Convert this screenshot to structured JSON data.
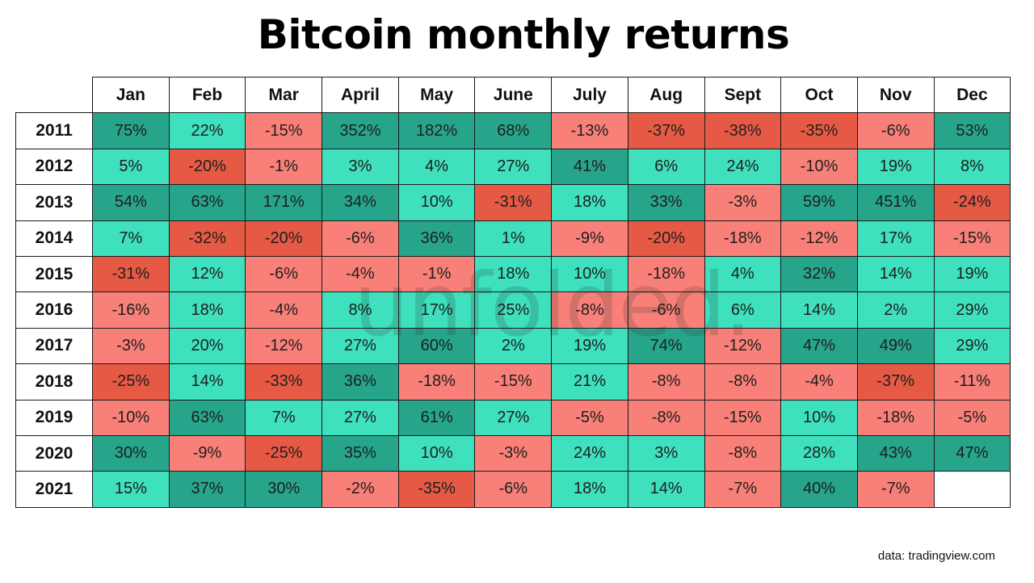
{
  "title": "Bitcoin monthly returns",
  "watermark": "unfolded.",
  "source": "data: tradingview.com",
  "colors": {
    "strong_positive": "#26a58b",
    "positive": "#3ee0bd",
    "negative": "#f88078",
    "strong_negative": "#e65a45",
    "empty": "#ffffff",
    "border": "#1a1a1a"
  },
  "chart_data": {
    "type": "heatmap",
    "title": "Bitcoin monthly returns",
    "columns": [
      "Jan",
      "Feb",
      "Mar",
      "April",
      "May",
      "June",
      "July",
      "Aug",
      "Sept",
      "Oct",
      "Nov",
      "Dec"
    ],
    "rows": [
      "2011",
      "2012",
      "2013",
      "2014",
      "2015",
      "2016",
      "2017",
      "2018",
      "2019",
      "2020",
      "2021"
    ],
    "unit": "%",
    "values": [
      [
        75,
        22,
        -15,
        352,
        182,
        68,
        -13,
        -37,
        -38,
        -35,
        -6,
        53
      ],
      [
        5,
        -20,
        -1,
        3,
        4,
        27,
        41,
        6,
        24,
        -10,
        19,
        8
      ],
      [
        54,
        63,
        171,
        34,
        10,
        -31,
        18,
        33,
        -3,
        59,
        451,
        -24
      ],
      [
        7,
        -32,
        -20,
        -6,
        36,
        1,
        -9,
        -20,
        -18,
        -12,
        17,
        -15
      ],
      [
        -31,
        12,
        -6,
        -4,
        -1,
        18,
        10,
        -18,
        4,
        32,
        14,
        19
      ],
      [
        -16,
        18,
        -4,
        8,
        17,
        25,
        -8,
        -6,
        6,
        14,
        2,
        29
      ],
      [
        -3,
        20,
        -12,
        27,
        60,
        2,
        19,
        74,
        -12,
        47,
        49,
        29
      ],
      [
        -25,
        14,
        -33,
        36,
        -18,
        -15,
        21,
        -8,
        -8,
        -4,
        -37,
        -11
      ],
      [
        -10,
        63,
        7,
        27,
        61,
        27,
        -5,
        -8,
        -15,
        10,
        -18,
        -5
      ],
      [
        30,
        -9,
        -25,
        35,
        10,
        -3,
        24,
        3,
        -8,
        28,
        43,
        47
      ],
      [
        15,
        37,
        30,
        -2,
        -35,
        -6,
        18,
        14,
        -7,
        40,
        -7,
        null
      ]
    ]
  }
}
